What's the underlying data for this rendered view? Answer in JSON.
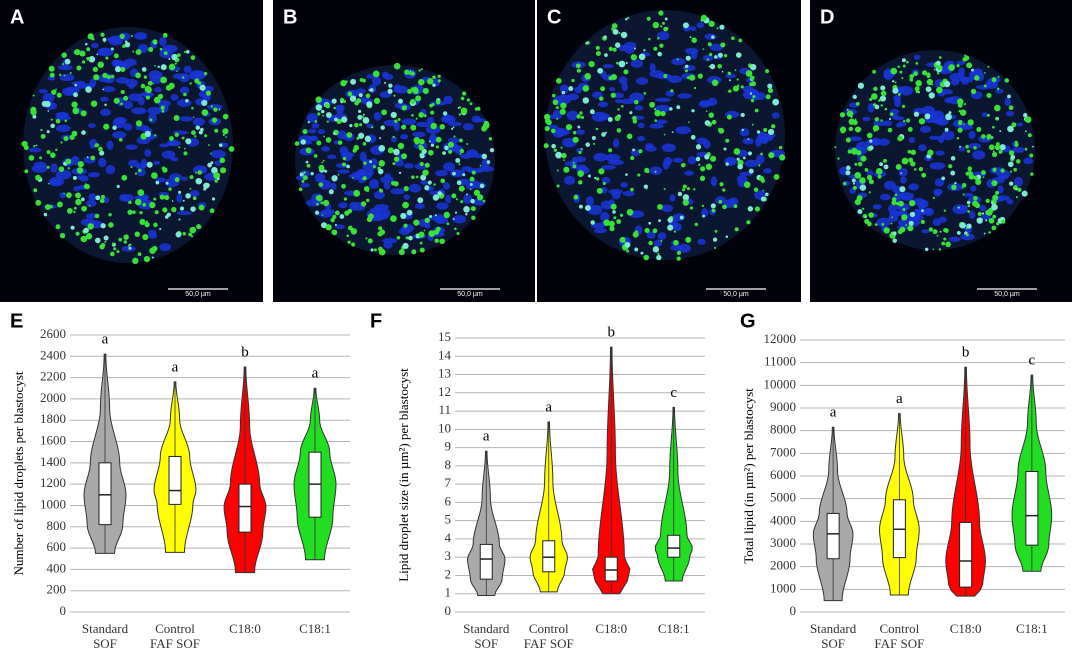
{
  "images": [
    {
      "label": "A",
      "scale_bar": "50,0 µm"
    },
    {
      "label": "B",
      "scale_bar": "50,0 µm"
    },
    {
      "label": "C",
      "scale_bar": "50,0 µm"
    },
    {
      "label": "D",
      "scale_bar": "50,0 µm"
    }
  ],
  "chart_data": [
    {
      "type": "violin",
      "panel": "E",
      "y_label": "Number of lipid droplets per blastocyst",
      "categories": [
        [
          "Standard",
          "SOF"
        ],
        [
          "Control",
          "FAF SOF"
        ],
        [
          "C18:0"
        ],
        [
          "C18:1"
        ]
      ],
      "colors": [
        "#a9a9a9",
        "#ffff00",
        "#ff0000",
        "#22dd22"
      ],
      "min": [
        550,
        560,
        370,
        490
      ],
      "q1": [
        820,
        1010,
        750,
        890
      ],
      "median": [
        1100,
        1140,
        990,
        1200
      ],
      "q3": [
        1400,
        1460,
        1200,
        1500
      ],
      "max": [
        2420,
        2160,
        2300,
        2100
      ],
      "letters": [
        "a",
        "a",
        "b",
        "a"
      ],
      "ylim": [
        0,
        2600
      ],
      "yticks": [
        0,
        200,
        400,
        600,
        800,
        1000,
        1200,
        1400,
        1600,
        1800,
        2000,
        2200,
        2400,
        2600
      ],
      "grid": true
    },
    {
      "type": "violin",
      "panel": "F",
      "y_label": "Lipid droplet size (in µm²) per blastocyst",
      "categories": [
        [
          "Standard",
          "SOF"
        ],
        [
          "Control",
          "FAF SOF"
        ],
        [
          "C18:0"
        ],
        [
          "C18:1"
        ]
      ],
      "colors": [
        "#a9a9a9",
        "#ffff00",
        "#ff0000",
        "#22dd22"
      ],
      "min": [
        0.9,
        1.1,
        1.0,
        1.7
      ],
      "q1": [
        1.8,
        2.2,
        1.7,
        3.0
      ],
      "median": [
        2.9,
        3.0,
        2.3,
        3.5
      ],
      "q3": [
        3.7,
        3.9,
        3.0,
        4.2
      ],
      "max": [
        8.8,
        10.4,
        14.5,
        11.2
      ],
      "letters": [
        "a",
        "a",
        "b",
        "c"
      ],
      "ylim": [
        0,
        15
      ],
      "yticks": [
        0,
        1,
        2,
        3,
        4,
        5,
        6,
        7,
        8,
        9,
        10,
        11,
        12,
        13,
        14,
        15
      ],
      "grid": true
    },
    {
      "type": "violin",
      "panel": "G",
      "y_label": "Total lipid (in µm²) per blastocyst",
      "categories": [
        [
          "Standard",
          "SOF"
        ],
        [
          "Control",
          "FAF SOF"
        ],
        [
          "C18:0"
        ],
        [
          "C18:1"
        ]
      ],
      "colors": [
        "#a9a9a9",
        "#ffff00",
        "#ff0000",
        "#22dd22"
      ],
      "min": [
        500,
        750,
        700,
        1800
      ],
      "q1": [
        2350,
        2400,
        1100,
        2950
      ],
      "median": [
        3450,
        3650,
        2250,
        4250
      ],
      "q3": [
        4350,
        4950,
        3950,
        6200
      ],
      "max": [
        8150,
        8750,
        10800,
        10450
      ],
      "letters": [
        "a",
        "a",
        "b",
        "c"
      ],
      "ylim": [
        0,
        12000
      ],
      "yticks": [
        0,
        1000,
        2000,
        3000,
        4000,
        5000,
        6000,
        7000,
        8000,
        9000,
        10000,
        11000,
        12000
      ],
      "grid": true
    }
  ]
}
